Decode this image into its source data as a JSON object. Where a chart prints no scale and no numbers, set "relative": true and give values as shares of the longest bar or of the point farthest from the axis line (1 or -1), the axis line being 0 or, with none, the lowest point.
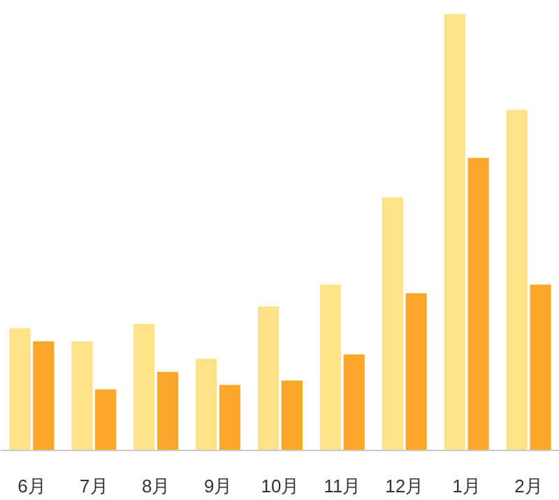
{
  "chart_data": {
    "type": "bar",
    "relative": true,
    "categories": [
      "6月",
      "7月",
      "8月",
      "9月",
      "10月",
      "11月",
      "12月",
      "1月",
      "2月"
    ],
    "series": [
      {
        "color": "#fde28a",
        "values": [
          0.28,
          0.25,
          0.29,
          0.21,
          0.33,
          0.38,
          0.58,
          1,
          0.78
        ]
      },
      {
        "color": "#fba72a",
        "values": [
          0.25,
          0.14,
          0.18,
          0.15,
          0.16,
          0.22,
          0.36,
          0.67,
          0.38
        ]
      }
    ],
    "grid": false
  }
}
